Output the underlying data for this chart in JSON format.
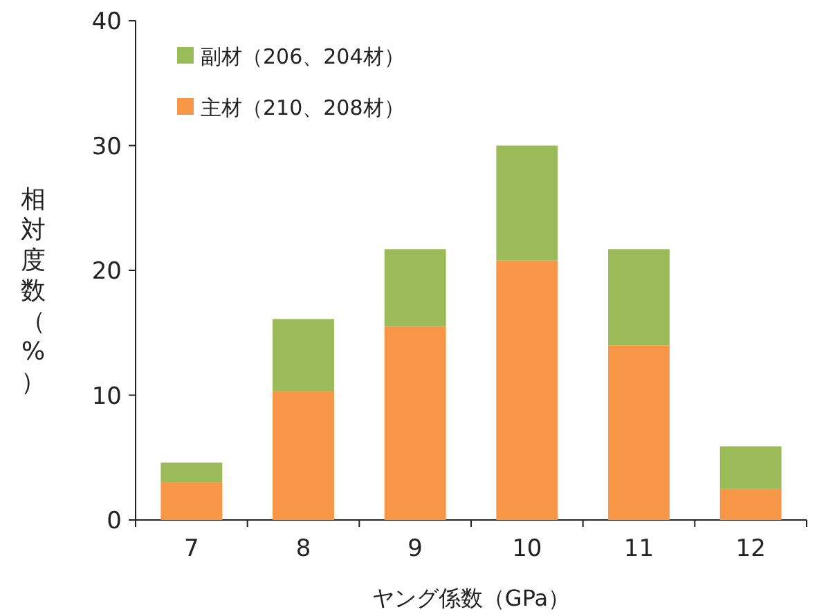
{
  "chart_data": {
    "type": "bar",
    "stacked": true,
    "xlabel": "ヤング係数（GPa）",
    "ylabel": "相対度数（%）",
    "categories": [
      "7",
      "8",
      "9",
      "10",
      "11",
      "12"
    ],
    "series": [
      {
        "name": "主材（210、208材）",
        "color": "#f79646",
        "values": [
          3.0,
          10.3,
          15.5,
          20.8,
          14.0,
          2.5
        ]
      },
      {
        "name": "副材（206、204材）",
        "color": "#9bbb59",
        "values": [
          1.6,
          5.8,
          6.2,
          9.2,
          7.7,
          3.4
        ]
      }
    ],
    "ylim": [
      0,
      40
    ],
    "yticks": [
      0,
      10,
      20,
      30,
      40
    ],
    "legend": "top left"
  }
}
